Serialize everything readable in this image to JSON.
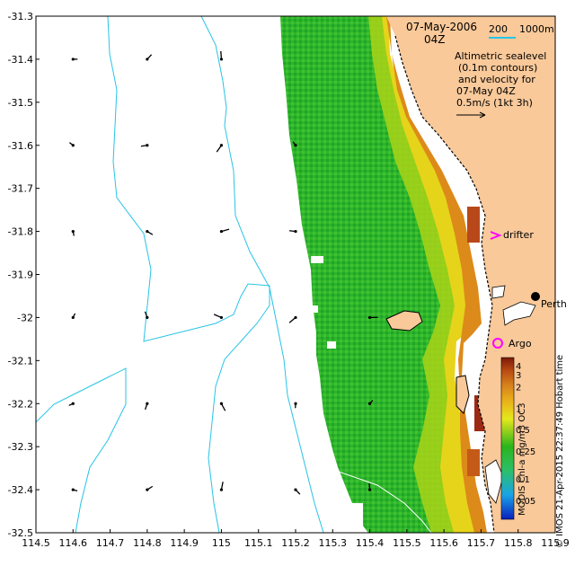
{
  "header": {
    "datetime_line1": "07-May-2006",
    "datetime_line2": "04Z",
    "scale_200": "200",
    "scale_1000": "1000m"
  },
  "legend": {
    "line1": "Altimetric sealevel",
    "line2": "(0.1m contours)",
    "line3": "and velocity for",
    "line4": "07-May 04Z",
    "line5": "0.5m/s (1kt 3h)"
  },
  "labels": {
    "drifter": "drifter",
    "argo": "Argo",
    "city": "Perth",
    "colorbar_title": "MODIS Chl-a mg/m3 OC3",
    "credit": "© IMOS 21-Apr-2015 22:37:49 Hobart time"
  },
  "colors": {
    "land": "#f9c99a",
    "bathymetry": "#27c4e6",
    "drifter": "#ff00ff",
    "argo": "#ff00ff",
    "scale_line": "#27c4e6"
  },
  "axes": {
    "x_ticks": [
      "114.5",
      "114.6",
      "114.7",
      "114.8",
      "114.9",
      "115",
      "115.1",
      "115.2",
      "115.3",
      "115.4",
      "115.5",
      "115.6",
      "115.7",
      "115.8",
      "115.9"
    ],
    "y_ticks": [
      "-31.3",
      "-31.4",
      "-31.5",
      "-31.6",
      "-31.7",
      "-31.8",
      "-31.9",
      "-32",
      "-32.1",
      "-32.2",
      "-32.3",
      "-32.4",
      "-32.5"
    ],
    "lon_range": [
      114.5,
      115.9
    ],
    "lat_range": [
      -32.5,
      -31.3
    ]
  },
  "colorbar": {
    "ticks": [
      "4",
      "3",
      "2",
      "1",
      "0.5",
      "0.25",
      "0.1",
      "0.05"
    ],
    "scale": "log"
  },
  "chart_data": {
    "type": "heatmap",
    "title": "",
    "xlabel": "",
    "ylabel": "",
    "xlim": [
      114.5,
      115.9
    ],
    "ylim": [
      -32.5,
      -31.3
    ],
    "colorbar_ticks": [
      4,
      3,
      2,
      1,
      0.5,
      0.25,
      0.1,
      0.05
    ],
    "markers": [
      {
        "label": "drifter",
        "lon": 115.75,
        "lat": -31.82
      },
      {
        "label": "Argo",
        "lon": 115.73,
        "lat": -32.07
      },
      {
        "label": "Perth",
        "lon": 115.86,
        "lat": -31.95
      }
    ],
    "vectors": [
      {
        "lon": 114.6,
        "lat": -31.4
      },
      {
        "lon": 114.8,
        "lat": -31.4
      },
      {
        "lon": 115.0,
        "lat": -31.4
      },
      {
        "lon": 114.6,
        "lat": -31.6
      },
      {
        "lon": 114.8,
        "lat": -31.6
      },
      {
        "lon": 115.0,
        "lat": -31.6
      },
      {
        "lon": 114.6,
        "lat": -31.8
      },
      {
        "lon": 114.8,
        "lat": -31.8
      },
      {
        "lon": 115.0,
        "lat": -31.8
      },
      {
        "lon": 114.6,
        "lat": -32.0
      },
      {
        "lon": 114.8,
        "lat": -32.0
      },
      {
        "lon": 115.0,
        "lat": -32.0
      },
      {
        "lon": 114.6,
        "lat": -32.2
      },
      {
        "lon": 114.8,
        "lat": -32.2
      },
      {
        "lon": 115.0,
        "lat": -32.2
      },
      {
        "lon": 114.6,
        "lat": -32.4
      },
      {
        "lon": 114.8,
        "lat": -32.4
      },
      {
        "lon": 115.0,
        "lat": -32.4
      },
      {
        "lon": 115.2,
        "lat": -31.6
      },
      {
        "lon": 115.2,
        "lat": -31.8
      },
      {
        "lon": 115.2,
        "lat": -32.0
      },
      {
        "lon": 115.2,
        "lat": -32.2
      },
      {
        "lon": 115.2,
        "lat": -32.4
      },
      {
        "lon": 115.4,
        "lat": -32.0
      },
      {
        "lon": 115.4,
        "lat": -32.2
      },
      {
        "lon": 115.4,
        "lat": -32.4
      }
    ]
  }
}
